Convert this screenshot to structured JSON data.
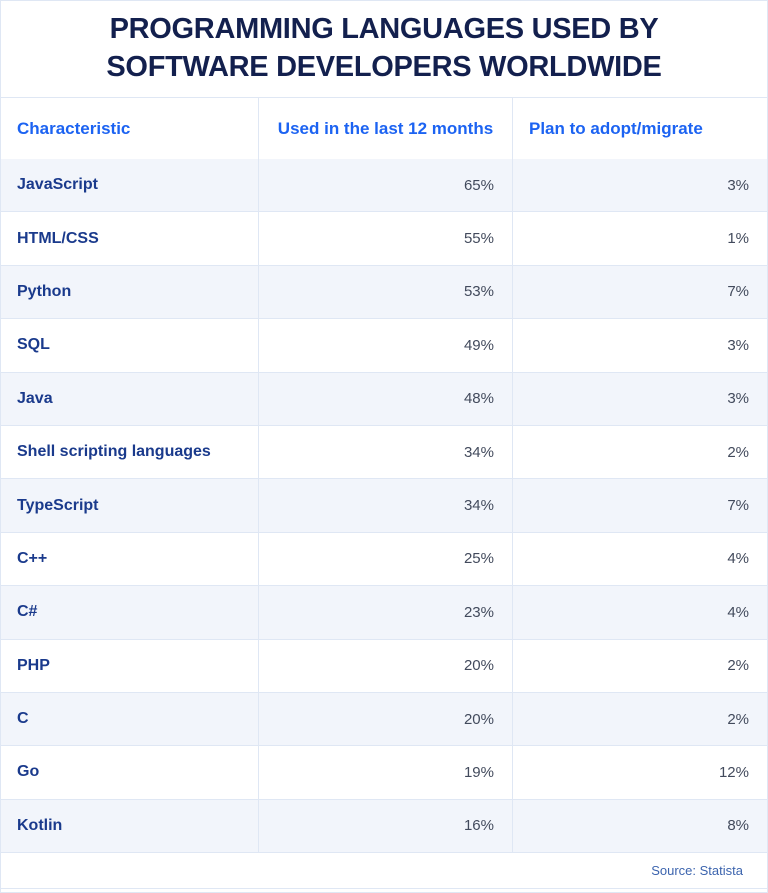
{
  "title": "PROGRAMMING LANGUAGES USED BY SOFTWARE DEVELOPERS WORLDWIDE",
  "table": {
    "columns": [
      "Characteristic",
      "Used in the last 12 months",
      "Plan to adopt/migrate"
    ],
    "rows": [
      {
        "label": "JavaScript",
        "used": "65%",
        "adopt": "3%"
      },
      {
        "label": "HTML/CSS",
        "used": "55%",
        "adopt": "1%"
      },
      {
        "label": "Python",
        "used": "53%",
        "adopt": "7%"
      },
      {
        "label": "SQL",
        "used": "49%",
        "adopt": "3%"
      },
      {
        "label": "Java",
        "used": "48%",
        "adopt": "3%"
      },
      {
        "label": "Shell scripting languages",
        "used": "34%",
        "adopt": "2%"
      },
      {
        "label": "TypeScript",
        "used": "34%",
        "adopt": "7%"
      },
      {
        "label": "C++",
        "used": "25%",
        "adopt": "4%"
      },
      {
        "label": "C#",
        "used": "23%",
        "adopt": "4%"
      },
      {
        "label": "PHP",
        "used": "20%",
        "adopt": "2%"
      },
      {
        "label": "C",
        "used": "20%",
        "adopt": "2%"
      },
      {
        "label": "Go",
        "used": "19%",
        "adopt": "12%"
      },
      {
        "label": "Kotlin",
        "used": "16%",
        "adopt": "8%"
      }
    ]
  },
  "footer": {
    "source_label": "Source: Statista"
  },
  "colors": {
    "title_navy": "#13204e",
    "header_blue": "#1c63f2",
    "label_navy": "#1a3a8c",
    "value_gray": "#424a5c",
    "stripe_bg": "#f2f5fb",
    "border_light": "#dfe7f4",
    "source_blue": "#3c64ae",
    "page_bg": "#ffffff"
  },
  "chart_data": {
    "type": "table",
    "title": "PROGRAMMING LANGUAGES USED BY SOFTWARE DEVELOPERS WORLDWIDE",
    "categories": [
      "JavaScript",
      "HTML/CSS",
      "Python",
      "SQL",
      "Java",
      "Shell scripting languages",
      "TypeScript",
      "C++",
      "C#",
      "PHP",
      "C",
      "Go",
      "Kotlin"
    ],
    "series": [
      {
        "name": "Used in the last 12 months",
        "unit": "%",
        "values": [
          65,
          55,
          53,
          49,
          48,
          34,
          34,
          25,
          23,
          20,
          20,
          19,
          16
        ]
      },
      {
        "name": "Plan to adopt/migrate",
        "unit": "%",
        "values": [
          3,
          1,
          7,
          3,
          3,
          2,
          7,
          4,
          4,
          2,
          2,
          12,
          8
        ]
      }
    ],
    "layout": {
      "striped_rows": true,
      "value_alignment": "right",
      "legend_position": "none",
      "grid": "row-and-column-rules"
    },
    "source": "Statista"
  }
}
